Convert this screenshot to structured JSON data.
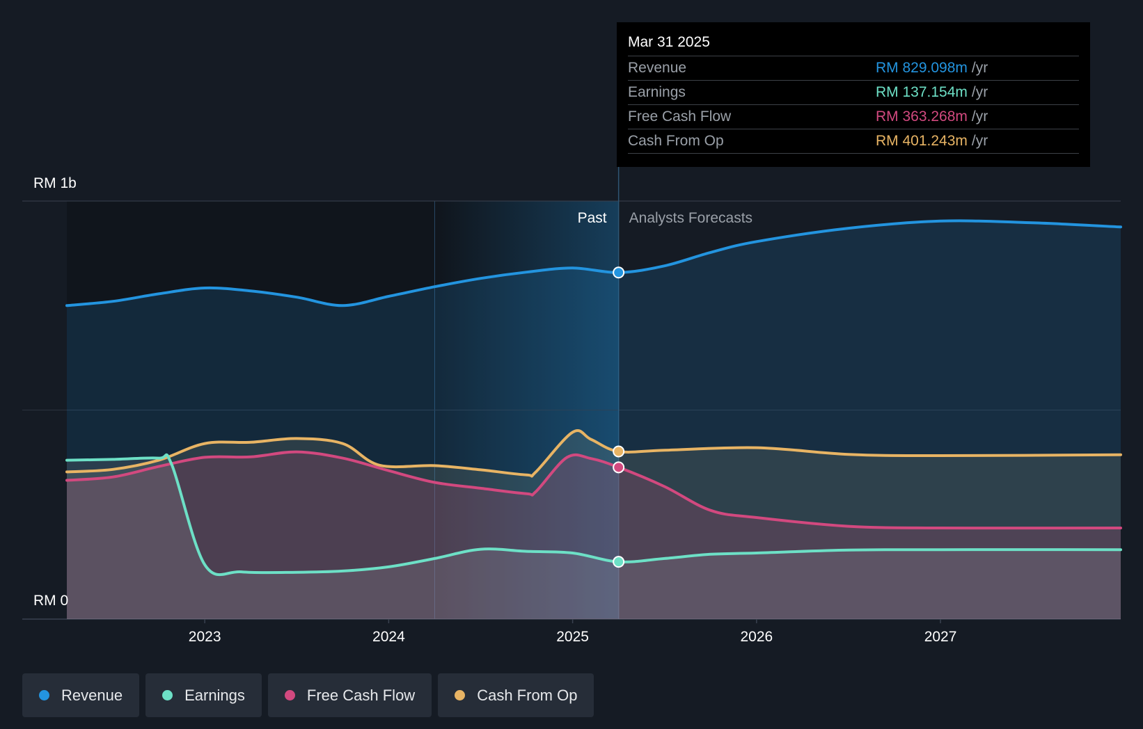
{
  "chart_data": {
    "type": "area",
    "y_unit": "RM",
    "y_tick_labels": [
      "RM 1b",
      "RM 0"
    ],
    "ylim": [
      0,
      1000
    ],
    "xlim": [
      2022.25,
      2027.98
    ],
    "x_tick_labels": [
      "2023",
      "2024",
      "2025",
      "2026",
      "2027"
    ],
    "x_ticks": [
      2023,
      2024,
      2025,
      2026,
      2027
    ],
    "divider_x": 2025.25,
    "past_label": "Past",
    "forecast_label": "Analysts Forecasts",
    "series": [
      {
        "name": "Revenue",
        "color": "#2394df",
        "points": [
          [
            2022.25,
            750
          ],
          [
            2022.5,
            760
          ],
          [
            2022.75,
            778
          ],
          [
            2023.0,
            792
          ],
          [
            2023.25,
            785
          ],
          [
            2023.5,
            770
          ],
          [
            2023.75,
            750
          ],
          [
            2024.0,
            772
          ],
          [
            2024.25,
            795
          ],
          [
            2024.5,
            815
          ],
          [
            2024.75,
            830
          ],
          [
            2025.0,
            840
          ],
          [
            2025.25,
            829
          ],
          [
            2025.5,
            845
          ],
          [
            2025.75,
            877
          ],
          [
            2026.0,
            903
          ],
          [
            2026.5,
            935
          ],
          [
            2027.0,
            952
          ],
          [
            2027.5,
            948
          ],
          [
            2027.98,
            938
          ]
        ]
      },
      {
        "name": "Earnings",
        "color": "#6de0c6",
        "points": [
          [
            2022.25,
            380
          ],
          [
            2022.5,
            382
          ],
          [
            2022.75,
            385
          ],
          [
            2022.82,
            370
          ],
          [
            2023.0,
            130
          ],
          [
            2023.2,
            113
          ],
          [
            2023.5,
            112
          ],
          [
            2023.75,
            115
          ],
          [
            2024.0,
            125
          ],
          [
            2024.25,
            145
          ],
          [
            2024.5,
            167
          ],
          [
            2024.75,
            162
          ],
          [
            2025.0,
            158
          ],
          [
            2025.25,
            137
          ],
          [
            2025.5,
            145
          ],
          [
            2025.75,
            155
          ],
          [
            2026.0,
            158
          ],
          [
            2026.5,
            165
          ],
          [
            2027.0,
            166
          ],
          [
            2027.98,
            166
          ]
        ]
      },
      {
        "name": "Free Cash Flow",
        "color": "#d2497f",
        "points": [
          [
            2022.25,
            332
          ],
          [
            2022.5,
            340
          ],
          [
            2022.75,
            365
          ],
          [
            2023.0,
            387
          ],
          [
            2023.25,
            388
          ],
          [
            2023.5,
            400
          ],
          [
            2023.75,
            385
          ],
          [
            2024.0,
            355
          ],
          [
            2024.25,
            327
          ],
          [
            2024.5,
            313
          ],
          [
            2024.75,
            300
          ],
          [
            2024.8,
            305
          ],
          [
            2024.97,
            387
          ],
          [
            2025.1,
            384
          ],
          [
            2025.25,
            363
          ],
          [
            2025.5,
            317
          ],
          [
            2025.75,
            260
          ],
          [
            2026.0,
            243
          ],
          [
            2026.5,
            222
          ],
          [
            2027.0,
            218
          ],
          [
            2027.98,
            218
          ]
        ]
      },
      {
        "name": "Cash From Op",
        "color": "#e8b464",
        "points": [
          [
            2022.25,
            352
          ],
          [
            2022.5,
            358
          ],
          [
            2022.75,
            380
          ],
          [
            2023.0,
            420
          ],
          [
            2023.25,
            423
          ],
          [
            2023.5,
            432
          ],
          [
            2023.75,
            420
          ],
          [
            2023.95,
            368
          ],
          [
            2024.25,
            367
          ],
          [
            2024.5,
            357
          ],
          [
            2024.75,
            345
          ],
          [
            2024.8,
            352
          ],
          [
            2025.0,
            447
          ],
          [
            2025.1,
            430
          ],
          [
            2025.25,
            401
          ],
          [
            2025.5,
            404
          ],
          [
            2026.0,
            410
          ],
          [
            2026.5,
            394
          ],
          [
            2027.0,
            391
          ],
          [
            2027.98,
            393
          ]
        ]
      }
    ],
    "tooltip": {
      "date": "Mar 31 2025",
      "rows": [
        {
          "label": "Revenue",
          "value": "RM 829.098m",
          "unit": "/yr",
          "color": "#2394df"
        },
        {
          "label": "Earnings",
          "value": "RM 137.154m",
          "unit": "/yr",
          "color": "#6de0c6"
        },
        {
          "label": "Free Cash Flow",
          "value": "RM 363.268m",
          "unit": "/yr",
          "color": "#d2497f"
        },
        {
          "label": "Cash From Op",
          "value": "RM 401.243m",
          "unit": "/yr",
          "color": "#e8b464"
        }
      ]
    }
  },
  "legend": [
    {
      "label": "Revenue",
      "color": "#2394df"
    },
    {
      "label": "Earnings",
      "color": "#6de0c6"
    },
    {
      "label": "Free Cash Flow",
      "color": "#d2497f"
    },
    {
      "label": "Cash From Op",
      "color": "#e8b464"
    }
  ]
}
